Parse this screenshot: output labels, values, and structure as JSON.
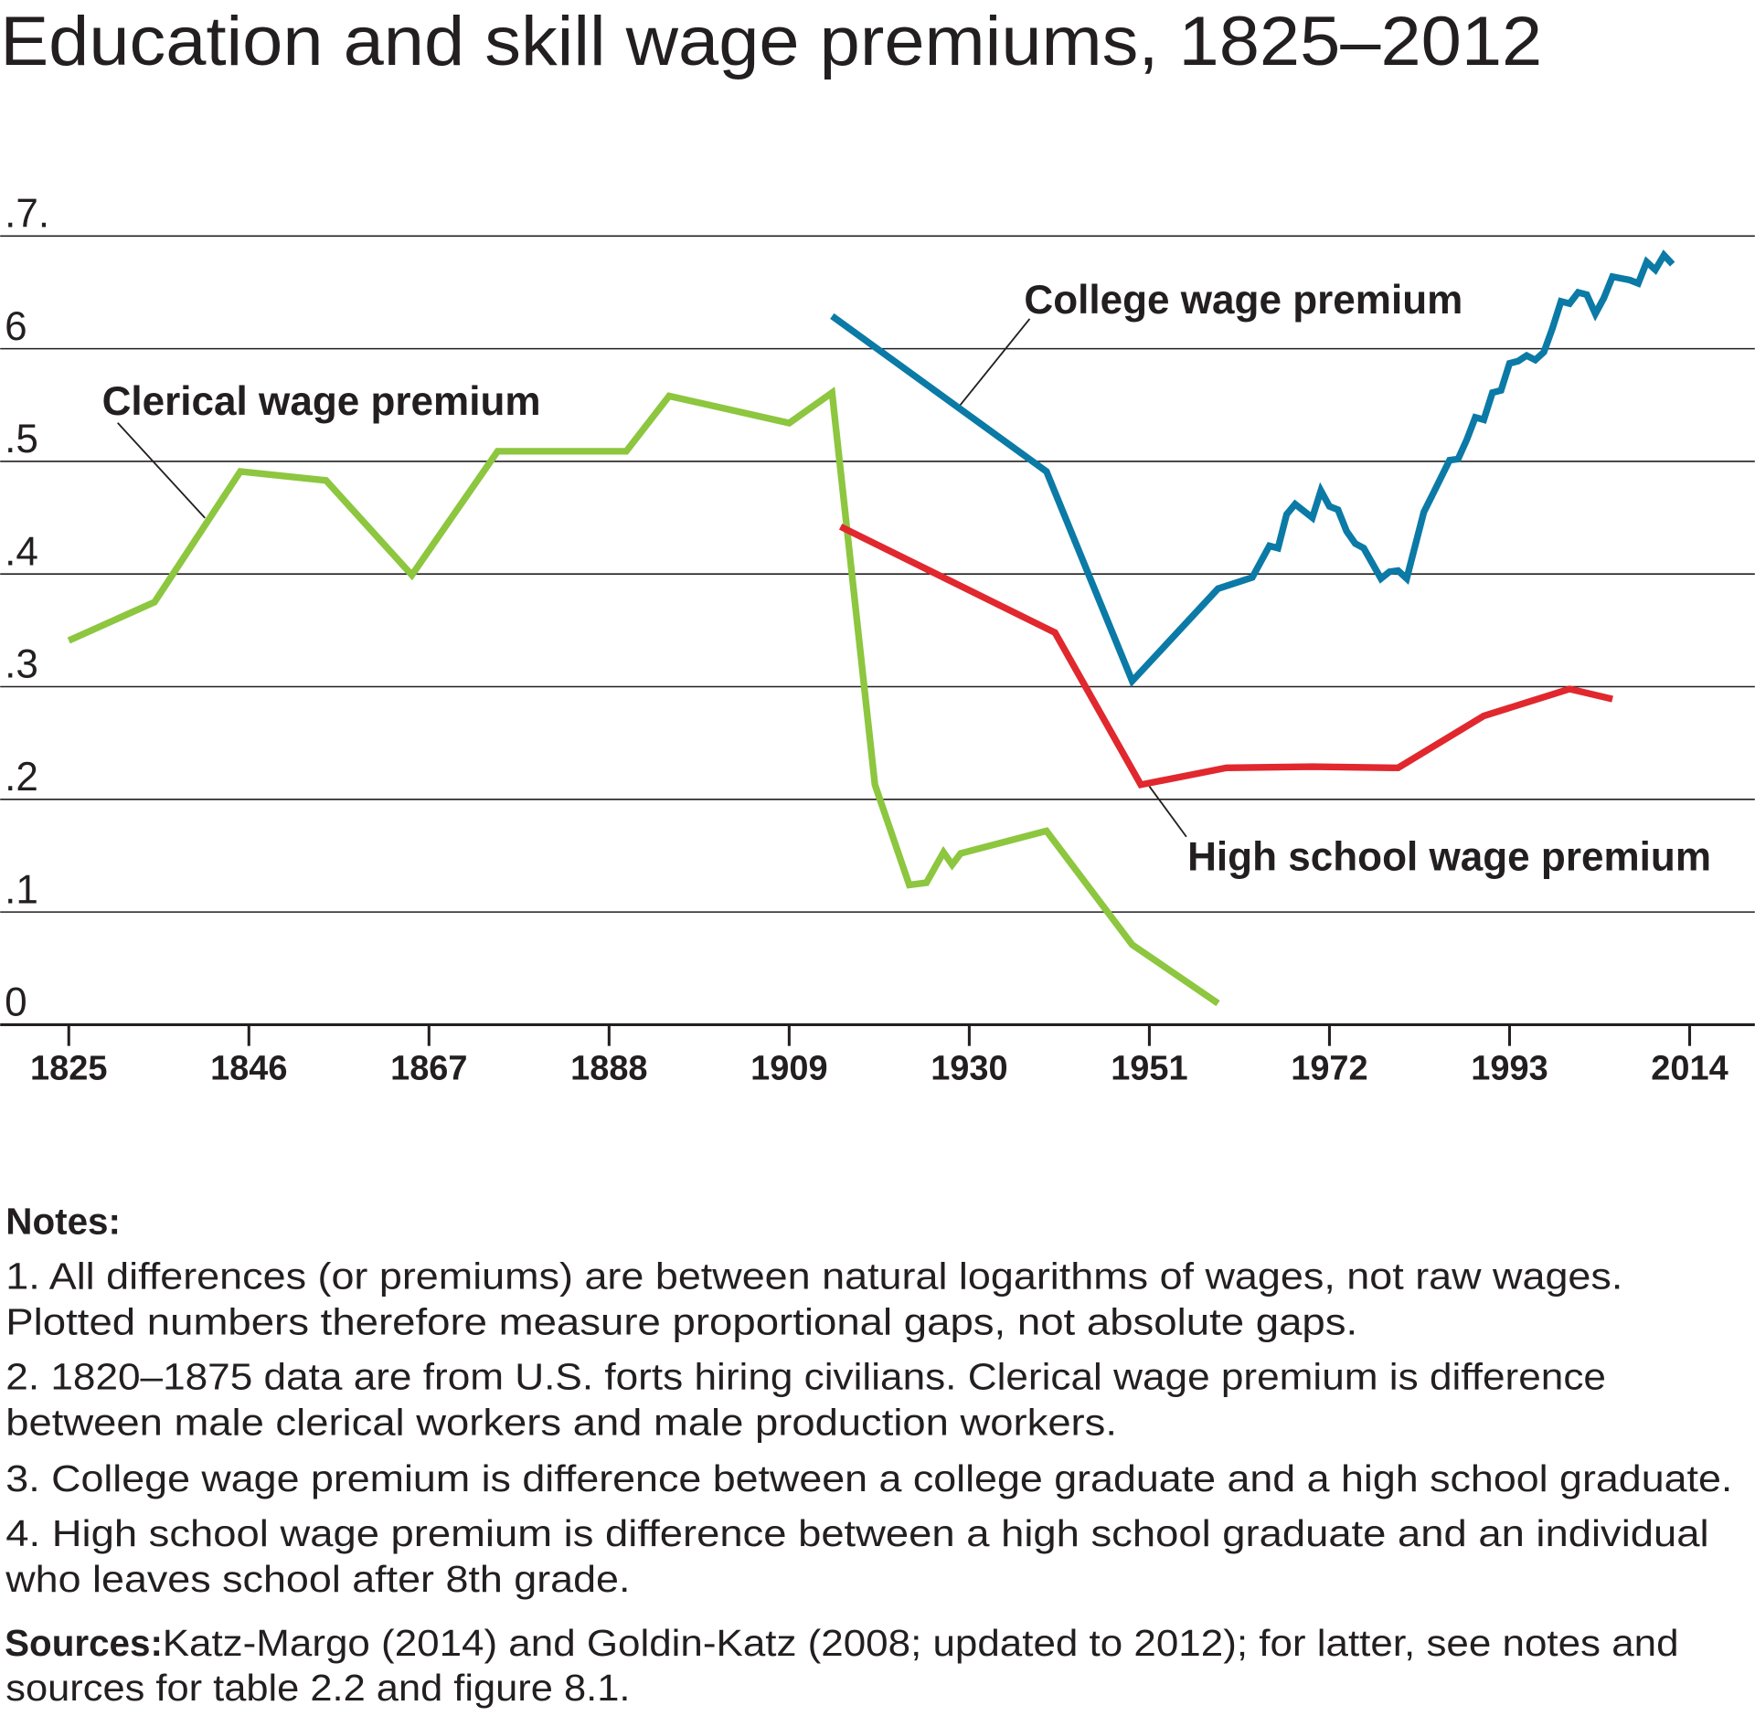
{
  "chart_data": {
    "type": "line",
    "title": "Education and skill wage premiums, 1825–2012",
    "xlim": [
      1817,
      2021.6
    ],
    "xticks": [
      1825,
      1846,
      1867,
      1888,
      1909,
      1930,
      1951,
      1972,
      1993,
      2014
    ],
    "ylim": [
      0,
      0.7
    ],
    "yticks": [
      0,
      {
        "value": 0.1,
        "label": ".1"
      },
      {
        "value": 0.2,
        "label": ".2"
      },
      {
        "value": 0.3,
        "label": ".3"
      },
      {
        "value": 0.4,
        "label": ".4"
      },
      {
        "value": 0.5,
        "label": ".5"
      },
      {
        "value": 0.6,
        "label": "6"
      },
      {
        "value": 0.7,
        "label": ".7."
      }
    ],
    "grid": true,
    "series": [
      {
        "name": "Clerical wage premium",
        "color": "#8dc63f",
        "x": [
          1825,
          1835,
          1845,
          1855,
          1865,
          1875,
          1890,
          1895,
          1909,
          1914,
          1919,
          1923,
          1925,
          1927,
          1928,
          1929,
          1939,
          1949,
          1959
        ],
        "values": [
          0.341,
          0.375,
          0.491,
          0.483,
          0.399,
          0.509,
          0.509,
          0.558,
          0.534,
          0.561,
          0.213,
          0.124,
          0.126,
          0.153,
          0.142,
          0.152,
          0.172,
          0.071,
          0.019
        ]
      },
      {
        "name": "College wage premium",
        "color": "#0b7aa6",
        "x": [
          1914,
          1939,
          1949,
          1959,
          1963,
          1965,
          1966,
          1967,
          1968,
          1970,
          1971,
          1972,
          1973,
          1974,
          1975,
          1976,
          1978,
          1979,
          1980,
          1981,
          1983,
          1984,
          1986,
          1987,
          1988,
          1989,
          1990,
          1991,
          1992,
          1993,
          1994,
          1995,
          1996,
          1997,
          1998,
          1999,
          2000,
          2001,
          2002,
          2003,
          2004,
          2005,
          2007,
          2008,
          2009,
          2010,
          2011,
          2012
        ],
        "values": [
          0.629,
          0.491,
          0.305,
          0.387,
          0.397,
          0.425,
          0.423,
          0.453,
          0.462,
          0.45,
          0.474,
          0.46,
          0.457,
          0.438,
          0.427,
          0.423,
          0.396,
          0.402,
          0.403,
          0.396,
          0.455,
          0.47,
          0.501,
          0.502,
          0.519,
          0.539,
          0.537,
          0.561,
          0.563,
          0.587,
          0.589,
          0.594,
          0.59,
          0.597,
          0.618,
          0.642,
          0.64,
          0.65,
          0.648,
          0.631,
          0.645,
          0.664,
          0.661,
          0.658,
          0.677,
          0.67,
          0.683,
          0.675
        ]
      },
      {
        "name": "High school wage premium",
        "color": "#e0282e",
        "x": [
          1915,
          1940,
          1950,
          1960,
          1970,
          1980,
          1990,
          2000,
          2005
        ],
        "values": [
          0.442,
          0.348,
          0.213,
          0.228,
          0.229,
          0.228,
          0.274,
          0.298,
          0.289
        ]
      }
    ]
  },
  "notes": {
    "heading": "Notes:",
    "items": [
      [
        "1. All differences (or premiums) are between natural logarithms of wages, not raw wages.",
        "Plotted numbers therefore measure proportional gaps, not absolute gaps."
      ],
      [
        "2. 1820–1875 data are from U.S. forts hiring civilians. Clerical wage premium is difference",
        "between male clerical workers and male production workers."
      ],
      [
        "3. College wage premium is difference between a college graduate and a high school graduate."
      ],
      [
        "4. High school wage premium is difference between a high school graduate and an individual",
        "who leaves school after 8th grade."
      ]
    ],
    "sources_label": "Sources:",
    "sources": [
      "Katz-Margo (2014) and Goldin-Katz (2008; updated to 2012); for latter, see notes and",
      "sources for table 2.2 and figure 8.1."
    ]
  }
}
